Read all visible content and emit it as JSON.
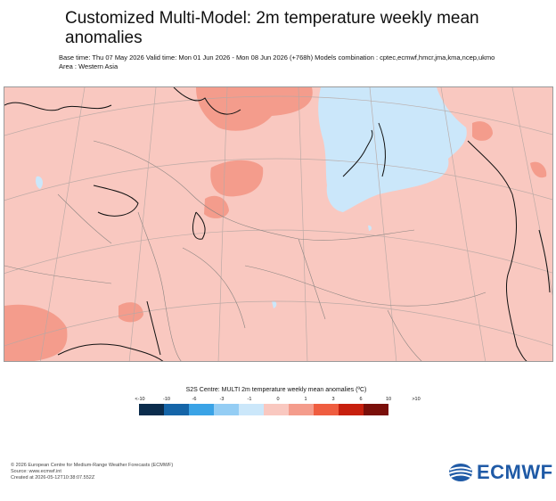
{
  "header": {
    "title": "Customized Multi-Model: 2m temperature weekly mean anomalies",
    "subtitle": "Base time: Thu 07 May 2026 Valid time: Mon 01 Jun 2026 - Mon 08 Jun 2026 (+768h) Models combination : cptec,ecmwf,hmcr,jma,kma,ncep,ukmo Area : Western Asia"
  },
  "legend": {
    "title": "S2S Centre: MULTI 2m temperature weekly mean anomalies (ºC)",
    "ticks": [
      "<-10",
      "-10",
      "-6",
      "-3",
      "-1",
      "0",
      "1",
      "3",
      "6",
      "10",
      ">10"
    ],
    "colors": [
      "#0b2c4c",
      "#1565a8",
      "#3aa3e6",
      "#94cdf4",
      "#cbe7fa",
      "#f9c8c0",
      "#f49c8c",
      "#ef5d40",
      "#c7200e",
      "#7a0f0a"
    ]
  },
  "map": {
    "background_color": "#f9c8c0",
    "cold_anomaly_color": "#cbe7fa",
    "warm_anomaly_color": "#f49c8c"
  },
  "footer": {
    "copyright": "© 2026 European Centre for Medium-Range Weather Forecasts (ECMWF)",
    "source": "Source: www.ecmwf.int",
    "created": "Created at 2026-05-12T10:38:07.552Z"
  },
  "logo": {
    "text": "ECMWF",
    "icon": "ecmwf-logo-icon"
  }
}
